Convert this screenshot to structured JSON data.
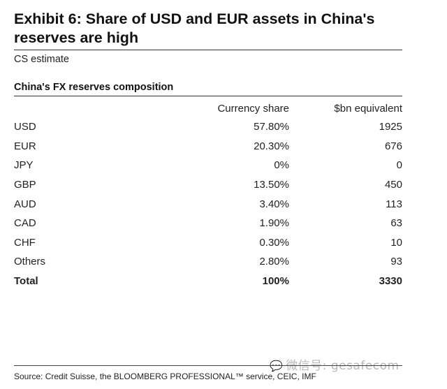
{
  "exhibit": {
    "title_line1": "Exhibit 6: Share of USD and EUR assets in China's",
    "title_line2": "reserves are high",
    "subtitle": "CS estimate"
  },
  "table": {
    "title": "China's FX reserves composition",
    "headers": [
      "",
      "Currency share",
      "$bn equivalent"
    ],
    "rows": [
      {
        "label": "USD",
        "share": "57.80%",
        "value": "1925"
      },
      {
        "label": "EUR",
        "share": "20.30%",
        "value": "676"
      },
      {
        "label": "JPY",
        "share": "0%",
        "value": "0"
      },
      {
        "label": "GBP",
        "share": "13.50%",
        "value": "450"
      },
      {
        "label": "AUD",
        "share": "3.40%",
        "value": "113"
      },
      {
        "label": "CAD",
        "share": "1.90%",
        "value": "63"
      },
      {
        "label": "CHF",
        "share": "0.30%",
        "value": "10"
      },
      {
        "label": "Others",
        "share": "2.80%",
        "value": "93"
      },
      {
        "label": "Total",
        "share": "100%",
        "value": "3330"
      }
    ]
  },
  "source": "Source: Credit Suisse, the BLOOMBERG PROFESSIONAL™ service, CEIC, IMF",
  "watermark": {
    "icon": "wechat-icon",
    "text": "微信号: gesafecom"
  }
}
